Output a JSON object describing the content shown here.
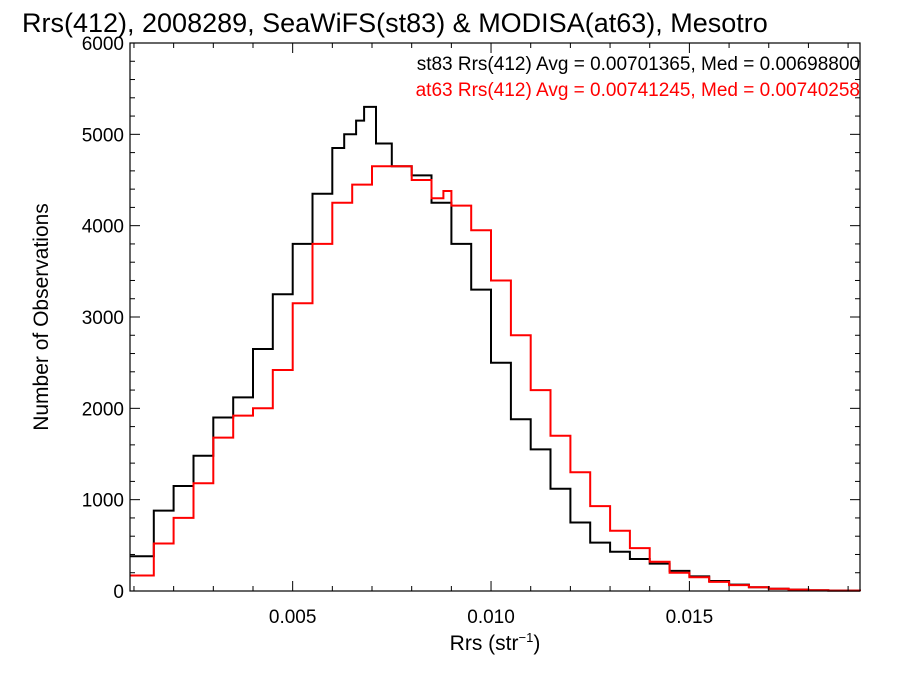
{
  "chart_data": {
    "type": "line",
    "title": "Rrs(412), 2008289, SeaWiFS(st83) & MODISA(at63), Mesotro",
    "xlabel": "Rrs (str",
    "xlabel_sup": "−1",
    "xlabel_end": ")",
    "ylabel": "Number of Observations",
    "xlim": [
      0.0009,
      0.0193
    ],
    "ylim": [
      0,
      6000
    ],
    "x_ticks": [
      0.005,
      0.01,
      0.015
    ],
    "x_tick_labels": [
      "0.005",
      "0.010",
      "0.015"
    ],
    "y_ticks": [
      0,
      1000,
      2000,
      3000,
      4000,
      5000,
      6000
    ],
    "y_tick_labels": [
      "0",
      "1000",
      "2000",
      "3000",
      "4000",
      "5000",
      "6000"
    ],
    "grid": false,
    "legend": "top-right text annotations",
    "annotations": [
      "st83 Rrs(412) Avg = 0.00701365, Med = 0.00698800",
      "at63 Rrs(412) Avg = 0.00741245, Med = 0.00740258"
    ],
    "series": [
      {
        "color": "#000000",
        "x": [
          0.0009,
          0.0015,
          0.002,
          0.0025,
          0.003,
          0.0035,
          0.004,
          0.0045,
          0.005,
          0.0055,
          0.006,
          0.0063,
          0.0066,
          0.0068,
          0.0071,
          0.0075,
          0.008,
          0.0085,
          0.009,
          0.0095,
          0.01,
          0.0105,
          0.011,
          0.0115,
          0.012,
          0.0125,
          0.013,
          0.0135,
          0.014,
          0.0145,
          0.015,
          0.0155,
          0.016,
          0.0165,
          0.017,
          0.0175,
          0.018,
          0.0185,
          0.0193
        ],
        "y": [
          380,
          880,
          1150,
          1480,
          1900,
          2120,
          2650,
          3250,
          3800,
          4350,
          4850,
          5000,
          5150,
          5300,
          4900,
          4650,
          4550,
          4250,
          3800,
          3300,
          2500,
          1880,
          1550,
          1120,
          750,
          530,
          430,
          350,
          300,
          220,
          160,
          110,
          70,
          40,
          25,
          15,
          8,
          4,
          0
        ]
      },
      {
        "color": "#ff0000",
        "x": [
          0.0009,
          0.0015,
          0.002,
          0.0025,
          0.003,
          0.0035,
          0.004,
          0.0045,
          0.005,
          0.0055,
          0.006,
          0.0065,
          0.007,
          0.0075,
          0.008,
          0.0085,
          0.0088,
          0.009,
          0.0095,
          0.01,
          0.0105,
          0.011,
          0.0115,
          0.012,
          0.0125,
          0.013,
          0.0135,
          0.014,
          0.0145,
          0.015,
          0.0155,
          0.016,
          0.0165,
          0.017,
          0.0175,
          0.018,
          0.0185,
          0.0193
        ],
        "y": [
          170,
          520,
          800,
          1180,
          1680,
          1920,
          2000,
          2420,
          3150,
          3800,
          4250,
          4450,
          4650,
          4650,
          4500,
          4300,
          4380,
          4220,
          3950,
          3400,
          2800,
          2200,
          1700,
          1300,
          930,
          660,
          470,
          320,
          200,
          150,
          100,
          65,
          40,
          25,
          15,
          8,
          4,
          0
        ]
      }
    ]
  }
}
